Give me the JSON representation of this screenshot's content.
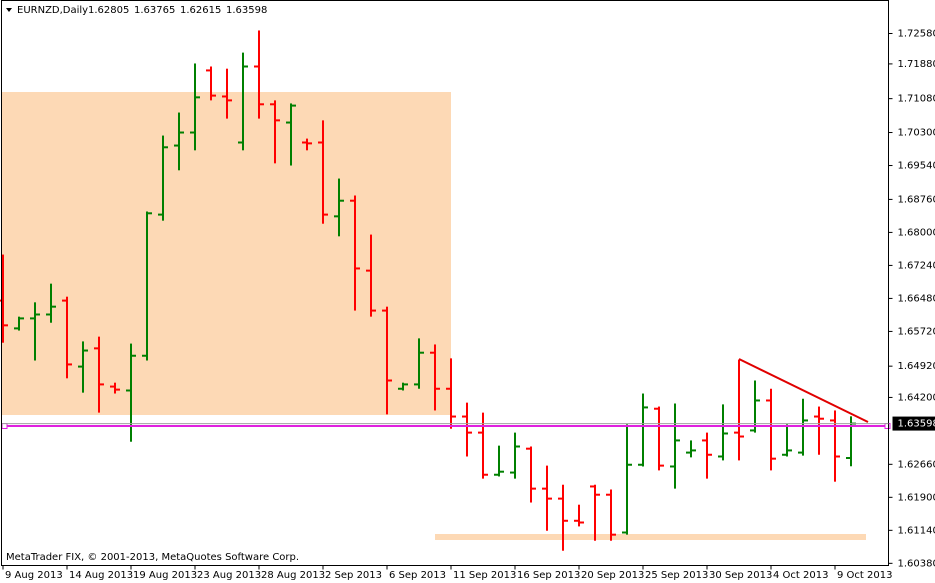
{
  "chart_data": {
    "type": "ohlc",
    "symbol": "EURNZD,Daily",
    "footer": "MetaTrader FIX, © 2001-2013, MetaQuotes Software Corp.",
    "up_color": "#008000",
    "down_color": "#ff0000",
    "categories": [
      "9 Aug 2013",
      null,
      null,
      null,
      "14 Aug 2013",
      null,
      null,
      null,
      "19 Aug 2013",
      null,
      null,
      null,
      "23 Aug 2013",
      null,
      null,
      null,
      "28 Aug 2013",
      null,
      null,
      null,
      "2 Sep 2013",
      null,
      null,
      null,
      "6 Sep 2013",
      null,
      null,
      null,
      "11 Sep 2013",
      null,
      null,
      null,
      "16 Sep 2013",
      null,
      null,
      null,
      "20 Sep 2013",
      null,
      null,
      null,
      "25 Sep 2013",
      null,
      null,
      null,
      "30 Sep 2013",
      null,
      null,
      null,
      "4 Oct 2013",
      null,
      null,
      null,
      "9 Oct 2013",
      null
    ],
    "open": [
      1.6643,
      1.6579,
      1.6602,
      1.6611,
      1.6643,
      1.6491,
      1.6533,
      1.6445,
      1.6436,
      1.6516,
      1.6841,
      1.7,
      1.703,
      1.7173,
      1.7113,
      1.7007,
      1.7182,
      1.7095,
      1.7053,
      1.7007,
      1.7007,
      1.6837,
      1.6873,
      1.6712,
      1.662,
      1.644,
      1.645,
      1.6523,
      1.644,
      1.6376,
      1.6339,
      1.6242,
      1.6247,
      1.6302,
      1.621,
      1.6187,
      1.6136,
      1.6215,
      1.6196,
      1.6109,
      1.6265,
      1.6394,
      1.6261,
      1.6293,
      1.6321,
      1.6284,
      1.6339,
      1.6344,
      1.6413,
      1.6288,
      1.6293,
      1.6376,
      1.6367,
      1.62805
    ],
    "high": [
      1.6749,
      1.6606,
      1.6639,
      1.6682,
      1.6652,
      1.6549,
      1.656,
      1.6454,
      1.6544,
      1.6848,
      1.7023,
      1.7076,
      1.7189,
      1.7182,
      1.7177,
      1.7214,
      1.7265,
      1.7104,
      1.7097,
      1.7016,
      1.7058,
      1.6924,
      1.6885,
      1.6795,
      1.6629,
      1.6454,
      1.6556,
      1.6542,
      1.651,
      1.6408,
      1.6385,
      1.6309,
      1.6339,
      1.6307,
      1.6263,
      1.6219,
      1.6173,
      1.6219,
      1.6208,
      1.6358,
      1.6429,
      1.6399,
      1.6406,
      1.6321,
      1.6339,
      1.6404,
      1.6507,
      1.6459,
      1.644,
      1.6358,
      1.6417,
      1.6399,
      1.639,
      1.63765
    ],
    "low": [
      1.6546,
      1.6574,
      1.6505,
      1.6592,
      1.6464,
      1.6431,
      1.6385,
      1.6429,
      1.6318,
      1.6505,
      1.6827,
      1.6943,
      1.6989,
      1.7104,
      1.7062,
      1.6989,
      1.7062,
      1.6959,
      1.6954,
      1.6989,
      1.682,
      1.6791,
      1.662,
      1.6606,
      1.6381,
      1.6436,
      1.644,
      1.639,
      1.6348,
      1.6284,
      1.6233,
      1.6238,
      1.6233,
      1.6178,
      1.6113,
      1.6067,
      1.6123,
      1.609,
      1.609,
      1.6104,
      1.6261,
      1.6252,
      1.621,
      1.6282,
      1.6233,
      1.6275,
      1.6275,
      1.6339,
      1.6252,
      1.6284,
      1.6286,
      1.6288,
      1.6226,
      1.62615
    ],
    "close": [
      1.6586,
      1.6602,
      1.6611,
      1.6629,
      1.6496,
      1.6528,
      1.645,
      1.6438,
      1.6516,
      1.6844,
      1.6996,
      1.703,
      1.7111,
      1.7115,
      1.7104,
      1.7182,
      1.7095,
      1.7058,
      1.7092,
      1.7005,
      1.6841,
      1.6873,
      1.6717,
      1.662,
      1.6459,
      1.645,
      1.6523,
      1.644,
      1.6376,
      1.6339,
      1.6242,
      1.6249,
      1.6307,
      1.621,
      1.6187,
      1.6136,
      1.6132,
      1.6196,
      1.6104,
      1.6265,
      1.6397,
      1.6263,
      1.6321,
      1.6298,
      1.6288,
      1.6337,
      1.633,
      1.6413,
      1.6279,
      1.6298,
      1.6367,
      1.6371,
      1.6284,
      1.63598
    ],
    "ylim": [
      1.6033,
      1.7334
    ],
    "yticks": [
      {
        "value": 1.7258,
        "label": "1.72580"
      },
      {
        "value": 1.7188,
        "label": "1.71880"
      },
      {
        "value": 1.7108,
        "label": "1.71080"
      },
      {
        "value": 1.703,
        "label": "1.70300"
      },
      {
        "value": 1.6954,
        "label": "1.69540"
      },
      {
        "value": 1.6876,
        "label": "1.68760"
      },
      {
        "value": 1.68,
        "label": "1.68000"
      },
      {
        "value": 1.6724,
        "label": "1.67240"
      },
      {
        "value": 1.6648,
        "label": "1.66480"
      },
      {
        "value": 1.6572,
        "label": "1.65720"
      },
      {
        "value": 1.6492,
        "label": "1.64920"
      },
      {
        "value": 1.642,
        "label": "1.64200"
      },
      {
        "value": 1.6266,
        "label": "1.62660"
      },
      {
        "value": 1.619,
        "label": "1.61900"
      },
      {
        "value": 1.6114,
        "label": "1.61140"
      },
      {
        "value": 1.6038,
        "label": "1.60380"
      }
    ]
  }
}
